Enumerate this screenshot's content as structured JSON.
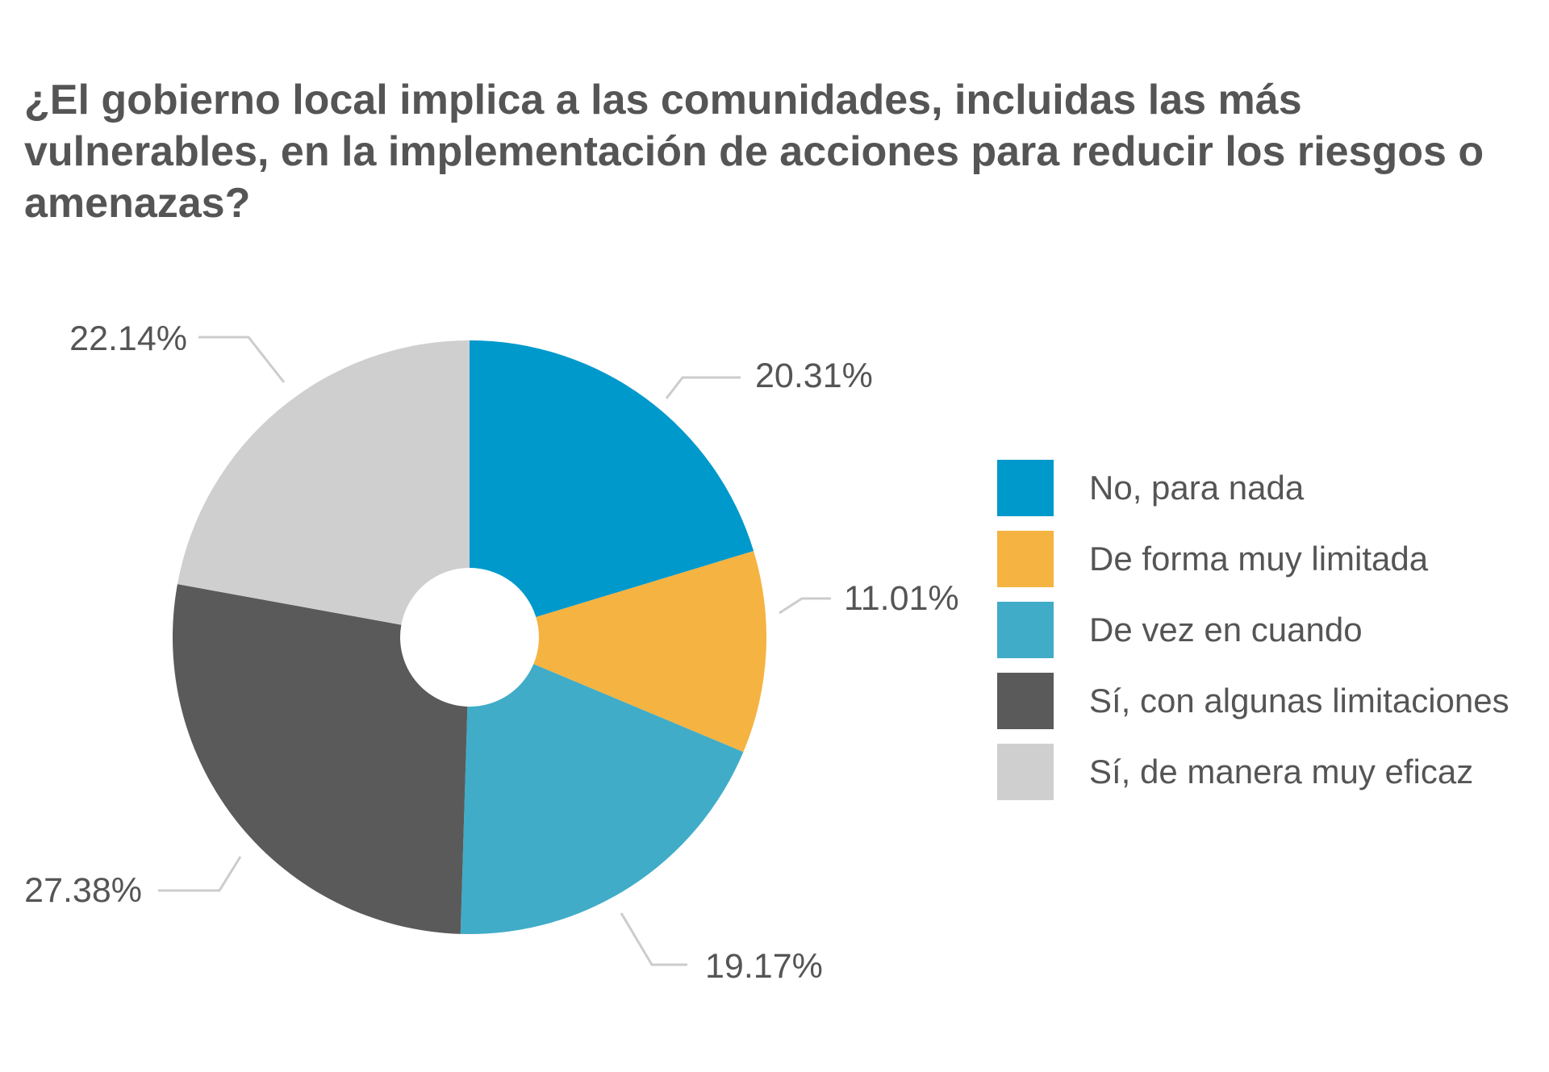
{
  "title": "¿El gobierno local implica a las comunidades, incluidas las más vulnerables, en la implementación de acciones para reducir los riesgos o amenazas?",
  "chart_data": {
    "type": "pie",
    "donut": true,
    "title": "¿El gobierno local implica a las comunidades, incluidas las más vulnerables, en la implementación de acciones para reducir los riesgos o amenazas?",
    "legend_position": "right",
    "slices": [
      {
        "label": "No, para nada",
        "value": 20.31,
        "display": "20.31%",
        "color": "#0099CC"
      },
      {
        "label": "De forma muy limitada",
        "value": 11.01,
        "display": "11.01%",
        "color": "#F5B342"
      },
      {
        "label": "De vez en cuando",
        "value": 19.17,
        "display": "19.17%",
        "color": "#40ACC8"
      },
      {
        "label": "Sí, con algunas limitaciones",
        "value": 27.38,
        "display": "27.38%",
        "color": "#5A5A5A"
      },
      {
        "label": "Sí, de manera muy eficaz",
        "value": 22.14,
        "display": "22.14%",
        "color": "#CFCFCF"
      }
    ]
  }
}
